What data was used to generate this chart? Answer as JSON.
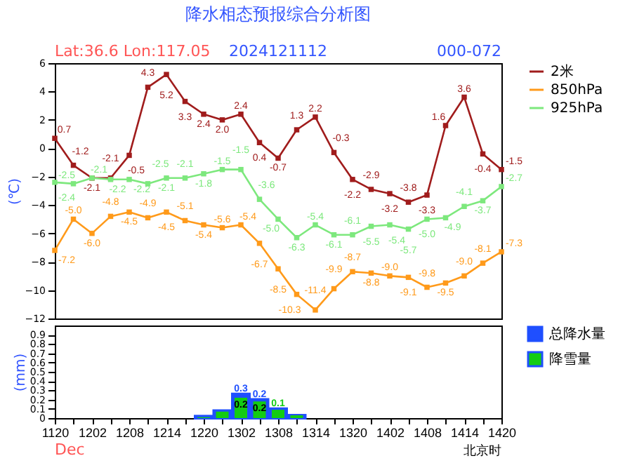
{
  "chart_data": [
    {
      "type": "line",
      "title": "降水相态预报综合分析图",
      "annotations": [
        "Lat:36.6 Lon:117.05",
        "2024121112",
        "000-072"
      ],
      "ylabel": "(℃)",
      "categories": [
        "1120",
        null,
        "1202",
        null,
        "1208",
        null,
        "1214",
        null,
        "1220",
        null,
        "1302",
        null,
        "1308",
        null,
        "1314",
        null,
        "1320",
        null,
        "1402",
        null,
        "1408",
        null,
        "1414",
        null,
        "1420"
      ],
      "series": [
        {
          "name": "2米",
          "color": "#a01c1c",
          "values": [
            0.7,
            -1.2,
            -2.1,
            -2.1,
            -0.5,
            4.3,
            5.2,
            3.3,
            2.4,
            2.0,
            2.4,
            0.4,
            -0.7,
            1.3,
            2.2,
            -0.3,
            -2.2,
            -2.9,
            -3.2,
            -3.8,
            -3.3,
            1.6,
            3.6,
            -0.4,
            -1.5
          ],
          "value_labels": [
            "0.7",
            "-1.2",
            "-2.1",
            "-2.1",
            "-0.5",
            "4.3",
            "5.2",
            "3.3",
            "2.4",
            "2.0",
            "2.4",
            "0.4",
            "-0.7",
            "1.3",
            "2.2",
            "-0.3",
            "-2.2",
            "-2.9",
            "-3.2",
            "-3.8",
            "-3.3",
            "1.6",
            "3.6",
            "-0.4",
            "-1.5"
          ]
        },
        {
          "name": "850hPa",
          "color": "#ff9a1a",
          "values": [
            -7.2,
            -5.0,
            -6.0,
            -4.8,
            -4.5,
            -4.9,
            -4.5,
            -5.1,
            -5.4,
            -5.6,
            -5.4,
            -6.7,
            -8.5,
            -10.3,
            -11.4,
            -9.9,
            -8.7,
            -8.8,
            -9.0,
            -9.1,
            -9.8,
            -9.5,
            -9.0,
            -8.1,
            -7.3
          ],
          "value_labels": [
            "-7.2",
            "-5.0",
            "-6.0",
            "-4.8",
            "-4.5",
            "-4.9",
            "-4.5",
            "-5.1",
            "-5.4",
            "-5.6",
            "-5.4",
            "-6.7",
            "-8.5",
            "-10.3",
            "-11.4",
            "-9.9",
            "-8.7",
            "-8.8",
            "-9.0",
            "-9.1",
            "-9.8",
            "-9.5",
            "-9.0",
            "-8.1",
            "-7.3"
          ]
        },
        {
          "name": "925hPa",
          "color": "#7de87d",
          "values": [
            -2.4,
            -2.5,
            -2.1,
            -2.2,
            -2.2,
            -2.5,
            -2.1,
            -2.1,
            -1.8,
            -1.5,
            -1.5,
            -3.6,
            -5.0,
            -6.3,
            -5.4,
            -6.1,
            -6.1,
            -5.5,
            -5.4,
            -5.7,
            -5.0,
            -4.9,
            -4.1,
            -3.7,
            -2.7
          ],
          "value_labels": [
            "-2.4",
            "-2.5",
            "-2.1",
            "-2.2",
            "-2.2",
            "-2.5",
            "-2.1",
            "-2.1",
            "-1.8",
            "-1.5",
            "-1.5",
            "-3.6",
            "-5.0",
            "-6.3",
            "-5.4",
            "-6.1",
            "-6.1",
            "-5.5",
            "-5.4",
            "-5.7",
            "-5.0",
            "-4.9",
            "-4.1",
            "-3.7",
            "-2.7"
          ]
        }
      ],
      "ylim": [
        -12,
        6
      ],
      "yticks": [
        -12,
        -10,
        -8,
        -6,
        -4,
        -2,
        0,
        2,
        4,
        6
      ],
      "marker": "square",
      "legend": "right",
      "tick_labels": "y"
    },
    {
      "type": "bar",
      "ylabel": "(mm)",
      "annotations": [
        "Dec",
        "北京时"
      ],
      "categories": [
        "1120",
        null,
        "1202",
        null,
        "1208",
        null,
        "1214",
        null,
        "1220",
        null,
        "1302",
        null,
        "1308",
        null,
        "1314",
        null,
        "1320",
        null,
        "1402",
        null,
        "1408",
        null,
        "1414",
        null,
        "1420"
      ],
      "series": [
        {
          "name": "总降水量",
          "color": "#1f4fff",
          "values": [
            null,
            null,
            null,
            null,
            null,
            null,
            null,
            null,
            0.02,
            0.08,
            0.26,
            0.2,
            0.1,
            0.03,
            null,
            null,
            null,
            null,
            null,
            null,
            null,
            null,
            null,
            null,
            null
          ],
          "value_labels": [
            null,
            null,
            null,
            null,
            null,
            null,
            null,
            null,
            null,
            null,
            "0.3",
            "0.2",
            null,
            null,
            null,
            null,
            null,
            null,
            null,
            null,
            null,
            null,
            null,
            null,
            null
          ]
        },
        {
          "name": "降雪量",
          "color": "#13cc13",
          "values": [
            null,
            null,
            null,
            null,
            null,
            null,
            null,
            null,
            0.01,
            0.07,
            0.22,
            0.18,
            0.09,
            0.03,
            null,
            null,
            null,
            null,
            null,
            null,
            null,
            null,
            null,
            null,
            null
          ],
          "value_labels": [
            null,
            null,
            null,
            null,
            null,
            null,
            null,
            null,
            null,
            null,
            "0.2",
            "0.2",
            "0.1",
            null,
            null,
            null,
            null,
            null,
            null,
            null,
            null,
            null,
            null,
            null,
            null
          ]
        }
      ],
      "ylim": [
        0,
        1
      ],
      "yticks": [
        0,
        0.1,
        0.2,
        0.3,
        0.4,
        0.5,
        0.6,
        0.7,
        0.8,
        0.9
      ],
      "legend": "right"
    }
  ]
}
